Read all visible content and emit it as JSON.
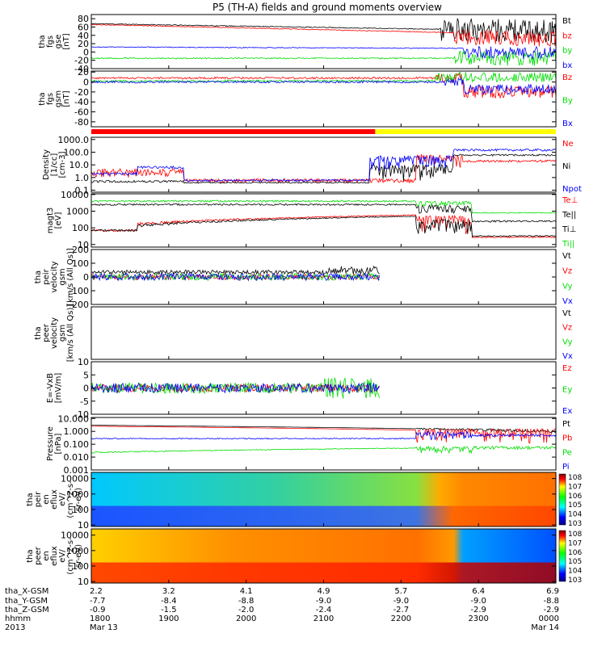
{
  "title": "P5 (TH-A) fields and ground moments overview",
  "chart_data": {
    "type": "line",
    "title": "P5 (TH-A) fields and ground moments overview",
    "time_range": [
      "2013-03-13 18:00",
      "2013-03-14 00:00"
    ],
    "bar_status": {
      "colors": [
        "#ff0000",
        "#ffff00"
      ],
      "switch_time": "2013-03-13 21:40"
    },
    "panels": [
      {
        "id": "fgs-gse",
        "ylabel": [
          "tha",
          "fgs",
          "gse",
          "[nT]"
        ],
        "ylim": [
          -40,
          90
        ],
        "ticks": [
          80,
          60,
          40,
          20,
          0,
          -20,
          -40
        ],
        "tick_labels": [
          "80",
          "60",
          "40",
          "20",
          "0",
          "-20",
          "-40"
        ],
        "log": false,
        "legend": [
          {
            "name": "Bt",
            "color": "#000000"
          },
          {
            "name": "bz",
            "color": "#ff0000"
          },
          {
            "name": "by",
            "color": "#00dd00"
          },
          {
            "name": "bx",
            "color": "#0000ff"
          }
        ]
      },
      {
        "id": "fgs-gsm",
        "ylabel": [
          "tha",
          "fgs",
          "gsm",
          "[nT]"
        ],
        "ylim": [
          -90,
          22
        ],
        "ticks": [
          20,
          0,
          -20,
          -40,
          -60,
          -80
        ],
        "tick_labels": [
          "20",
          "0",
          "-20",
          "-40",
          "-60",
          "-80"
        ],
        "log": false,
        "legend": [
          {
            "name": "Bz",
            "color": "#ff0000"
          },
          {
            "name": "By",
            "color": "#00dd00"
          },
          {
            "name": "Bx",
            "color": "#0000ff"
          }
        ]
      },
      {
        "id": "density",
        "ylabel": [
          "Density",
          "[1/cc]",
          "[cm-3]"
        ],
        "ylim": [
          0.07,
          1500
        ],
        "ticks": [
          1000,
          100,
          10,
          1,
          0.1
        ],
        "tick_labels": [
          "1000.0",
          "100.0",
          "10.0",
          "1.0",
          "0.1"
        ],
        "log": true,
        "legend": [
          {
            "name": "Ne",
            "color": "#ff0000"
          },
          {
            "name": "Ni",
            "color": "#000000"
          },
          {
            "name": "Npot",
            "color": "#0000ff"
          }
        ]
      },
      {
        "id": "temp",
        "ylabel": [
          "magt3",
          "[eV]"
        ],
        "ylim": [
          7,
          11000
        ],
        "ticks": [
          10000,
          1000,
          100,
          10
        ],
        "tick_labels": [
          "10000",
          "1000",
          "100",
          "10"
        ],
        "log": true,
        "legend": [
          {
            "name": "Te⊥",
            "color": "#ff0000"
          },
          {
            "name": "Te||",
            "color": "#000000"
          },
          {
            "name": "Ti⊥",
            "color": "#000000"
          },
          {
            "name": "Ti||",
            "color": "#00dd00"
          }
        ]
      },
      {
        "id": "peir-vel",
        "ylabel": [
          "tha",
          "peir",
          "velocity",
          "gsm",
          "[km/s (All Qs)]"
        ],
        "ylim": [
          -200,
          200
        ],
        "ticks": [
          200,
          100,
          0,
          -100,
          -200
        ],
        "tick_labels": [
          "200",
          "100",
          "0",
          "-100",
          "-200"
        ],
        "log": false,
        "legend": [
          {
            "name": "Vt",
            "color": "#000000"
          },
          {
            "name": "Vz",
            "color": "#ff0000"
          },
          {
            "name": "Vy",
            "color": "#00dd00"
          },
          {
            "name": "Vx",
            "color": "#0000ff"
          }
        ]
      },
      {
        "id": "peer-vel",
        "ylabel": [
          "tha",
          "peer",
          "velocity",
          "gsm",
          "[km/s (All Qs)]"
        ],
        "ylim": [
          -200,
          200
        ],
        "ticks": [],
        "tick_labels": [],
        "log": false,
        "legend": [
          {
            "name": "Vt",
            "color": "#000000"
          },
          {
            "name": "Vz",
            "color": "#ff0000"
          },
          {
            "name": "Vy",
            "color": "#00dd00"
          },
          {
            "name": "Vx",
            "color": "#0000ff"
          }
        ]
      },
      {
        "id": "efield",
        "ylabel": [
          "E=-VxB",
          "[mV/m]"
        ],
        "ylim": [
          -10,
          10
        ],
        "ticks": [
          10,
          5,
          0,
          -5,
          -10
        ],
        "tick_labels": [
          "10",
          "5",
          "0",
          "-5",
          "-10"
        ],
        "log": false,
        "legend": [
          {
            "name": "Ez",
            "color": "#ff0000"
          },
          {
            "name": "Ey",
            "color": "#00dd00"
          },
          {
            "name": "Ex",
            "color": "#0000ff"
          }
        ]
      },
      {
        "id": "pressure",
        "ylabel": [
          "Pressure",
          "[nPa]"
        ],
        "ylim": [
          0.001,
          12
        ],
        "ticks": [
          10,
          1,
          0.1,
          0.01,
          0.001
        ],
        "tick_labels": [
          "10.000",
          "1.000",
          "0.100",
          "0.010",
          "0.001"
        ],
        "log": true,
        "legend": [
          {
            "name": "Pt",
            "color": "#000000"
          },
          {
            "name": "Pb",
            "color": "#ff0000"
          },
          {
            "name": "Pe",
            "color": "#00dd00"
          },
          {
            "name": "Pi",
            "color": "#0000ff"
          }
        ]
      },
      {
        "id": "peir-eflux",
        "ylabel": [
          "tha",
          "peir",
          "en",
          "eflux",
          "eV/",
          "(cm^2-s-",
          "sr-eV)"
        ],
        "ylim": [
          8,
          25000
        ],
        "ticks": [
          10000,
          1000,
          100,
          10
        ],
        "tick_labels": [
          "10000",
          "1000",
          "100",
          "10"
        ],
        "log": true,
        "colorbar": [
          "10^8",
          "10^7",
          "10^6",
          "10^5",
          "10^4",
          "10^3"
        ]
      },
      {
        "id": "peer-eflux",
        "ylabel": [
          "tha",
          "peer",
          "en",
          "eflux",
          "eV/",
          "(cm^2-s-",
          "sr-eV)"
        ],
        "ylim": [
          8,
          25000
        ],
        "ticks": [
          10000,
          1000,
          100,
          10
        ],
        "tick_labels": [
          "10000",
          "1000",
          "100",
          "10"
        ],
        "log": true,
        "colorbar": [
          "10^8",
          "10^7",
          "10^6",
          "10^5",
          "10^4",
          "10^3"
        ]
      }
    ],
    "x_axis": {
      "ticks": [
        {
          "X": "2.2",
          "Y": "-7.7",
          "Z": "-0.9",
          "hhmm": "1800",
          "date": "Mar 13"
        },
        {
          "X": "3.2",
          "Y": "-8.4",
          "Z": "-1.5",
          "hhmm": "1900",
          "date": ""
        },
        {
          "X": "4.1",
          "Y": "-8.8",
          "Z": "-2.0",
          "hhmm": "2000",
          "date": ""
        },
        {
          "X": "4.9",
          "Y": "-9.0",
          "Z": "-2.4",
          "hhmm": "2100",
          "date": ""
        },
        {
          "X": "5.7",
          "Y": "-9.0",
          "Z": "-2.7",
          "hhmm": "2200",
          "date": ""
        },
        {
          "X": "6.4",
          "Y": "-9.0",
          "Z": "-2.9",
          "hhmm": "2300",
          "date": ""
        },
        {
          "X": "6.9",
          "Y": "-8.8",
          "Z": "-2.9",
          "hhmm": "0000",
          "date": "Mar 14"
        }
      ],
      "row_labels": [
        "tha_X-GSM",
        "tha_Y-GSM",
        "tha_Z-GSM",
        "hhmm",
        "2013"
      ]
    }
  }
}
